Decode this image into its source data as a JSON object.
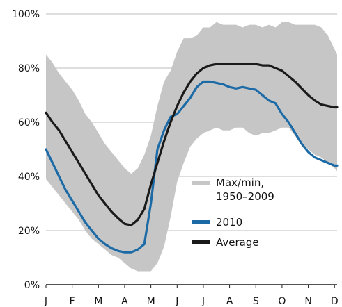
{
  "chart_data": {
    "type": "line",
    "title": "",
    "xlabel": "",
    "ylabel": "",
    "categories": [
      "J",
      "F",
      "M",
      "A",
      "M",
      "J",
      "J",
      "A",
      "S",
      "O",
      "N",
      "D"
    ],
    "xlim": [
      1,
      12.1
    ],
    "ylim": [
      0,
      100
    ],
    "y_ticks": [
      "0%",
      "20%",
      "40%",
      "60%",
      "80%",
      "100%"
    ],
    "grid": true,
    "legend_position": "lower-right",
    "band": {
      "name": "Max/min, 1950–2009",
      "color": "#c6c6c6",
      "x": [
        1,
        1.25,
        1.5,
        1.75,
        2,
        2.25,
        2.5,
        2.75,
        3,
        3.25,
        3.5,
        3.75,
        4,
        4.25,
        4.5,
        4.75,
        5,
        5.25,
        5.5,
        5.75,
        6,
        6.25,
        6.5,
        6.75,
        7,
        7.25,
        7.5,
        7.75,
        8,
        8.25,
        8.5,
        8.75,
        9,
        9.25,
        9.5,
        9.75,
        10,
        10.25,
        10.5,
        10.75,
        11,
        11.25,
        11.5,
        11.75,
        12,
        12.1
      ],
      "max": [
        85,
        82,
        78,
        75,
        72,
        68,
        63,
        60,
        56,
        52,
        49,
        46,
        43,
        41,
        43,
        48,
        55,
        66,
        75,
        79,
        86,
        91,
        91,
        92,
        95,
        95,
        97,
        96,
        96,
        96,
        95,
        96,
        96,
        95,
        96,
        95,
        97,
        97,
        96,
        96,
        96,
        96,
        95,
        92,
        87,
        85
      ],
      "min": [
        39,
        36,
        33,
        30,
        27,
        24,
        20,
        17,
        15,
        13,
        11,
        10,
        8,
        6,
        5,
        5,
        5,
        8,
        14,
        25,
        38,
        45,
        51,
        54,
        56,
        57,
        58,
        57,
        57,
        58,
        58,
        56,
        55,
        56,
        56,
        57,
        58,
        58,
        55,
        52,
        50,
        48,
        47,
        45,
        43,
        42
      ]
    },
    "series": [
      {
        "name": "2010",
        "color": "#1c6aa6",
        "x": [
          1,
          1.25,
          1.5,
          1.75,
          2,
          2.25,
          2.5,
          2.75,
          3,
          3.25,
          3.5,
          3.75,
          4,
          4.25,
          4.5,
          4.75,
          5,
          5.25,
          5.5,
          5.75,
          6,
          6.25,
          6.5,
          6.75,
          7,
          7.25,
          7.5,
          7.75,
          8,
          8.25,
          8.5,
          8.75,
          9,
          9.25,
          9.5,
          9.75,
          10,
          10.25,
          10.5,
          10.75,
          11,
          11.25,
          11.5,
          11.75,
          12,
          12.1
        ],
        "values": [
          50,
          45,
          40,
          35,
          31,
          27,
          23,
          20,
          17,
          15,
          13.5,
          12.5,
          12,
          12,
          13,
          15,
          30,
          50,
          57,
          62,
          63,
          66,
          69,
          73,
          75,
          75,
          74.5,
          74,
          73,
          72.5,
          73,
          72.5,
          72,
          70,
          68,
          67,
          63,
          60,
          56,
          52,
          49,
          47,
          46,
          45,
          44,
          44
        ]
      },
      {
        "name": "Average",
        "color": "#1a1a1a",
        "x": [
          1,
          1.25,
          1.5,
          1.75,
          2,
          2.25,
          2.5,
          2.75,
          3,
          3.25,
          3.5,
          3.75,
          4,
          4.25,
          4.5,
          4.75,
          5,
          5.25,
          5.5,
          5.75,
          6,
          6.25,
          6.5,
          6.75,
          7,
          7.25,
          7.5,
          7.75,
          8,
          8.25,
          8.5,
          8.75,
          9,
          9.25,
          9.5,
          9.75,
          10,
          10.25,
          10.5,
          10.75,
          11,
          11.25,
          11.5,
          11.75,
          12,
          12.1
        ],
        "values": [
          63.5,
          60,
          57,
          53,
          49,
          45,
          41,
          37,
          33,
          30,
          27,
          24.5,
          22.5,
          22,
          24,
          28,
          37,
          45,
          53,
          60,
          66,
          71,
          75,
          78,
          80,
          81,
          81.5,
          81.5,
          81.5,
          81.5,
          81.5,
          81.5,
          81.5,
          81,
          81,
          80,
          79,
          77,
          75,
          72.5,
          70,
          68,
          66.5,
          66,
          65.5,
          65.5
        ]
      }
    ],
    "legend": [
      {
        "label_lines": [
          "Max/min,",
          "1950–2009"
        ],
        "color": "#c6c6c6"
      },
      {
        "label_lines": [
          "2010"
        ],
        "color": "#1c6aa6"
      },
      {
        "label_lines": [
          "Average"
        ],
        "color": "#1a1a1a"
      }
    ]
  }
}
